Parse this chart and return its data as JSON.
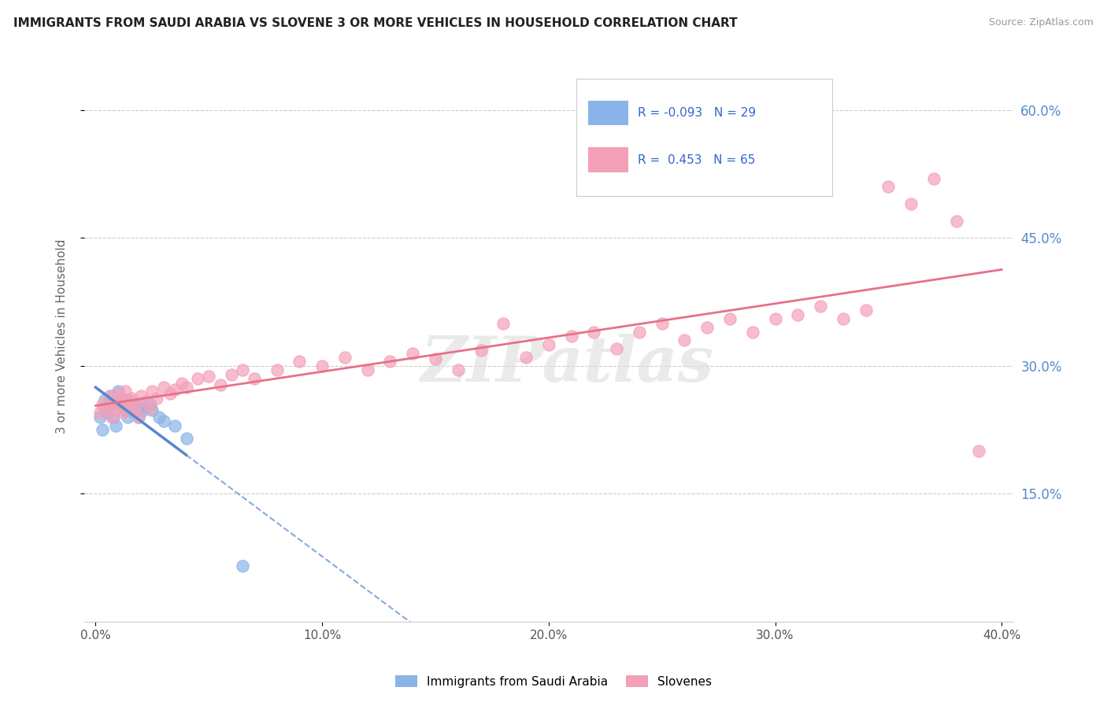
{
  "title": "IMMIGRANTS FROM SAUDI ARABIA VS SLOVENE 3 OR MORE VEHICLES IN HOUSEHOLD CORRELATION CHART",
  "source": "Source: ZipAtlas.com",
  "ylabel": "3 or more Vehicles in Household",
  "legend_labels": [
    "Immigrants from Saudi Arabia",
    "Slovenes"
  ],
  "r_blue": -0.093,
  "r_pink": 0.453,
  "n_blue": 29,
  "n_pink": 65,
  "xlim": [
    0.0,
    0.4
  ],
  "ylim": [
    0.0,
    0.65
  ],
  "xtick_vals": [
    0.0,
    0.1,
    0.2,
    0.3,
    0.4
  ],
  "xtick_labels": [
    "0.0%",
    "10.0%",
    "20.0%",
    "30.0%",
    "40.0%"
  ],
  "ytick_vals": [
    0.15,
    0.3,
    0.45,
    0.6
  ],
  "ytick_labels": [
    "15.0%",
    "30.0%",
    "45.0%",
    "60.0%"
  ],
  "color_blue": "#8AB4E8",
  "color_pink": "#F4A0B8",
  "line_blue_solid": "#5588CC",
  "line_pink_solid": "#E8708A",
  "watermark": "ZIPatlas",
  "blue_x": [
    0.002,
    0.003,
    0.004,
    0.004,
    0.005,
    0.006,
    0.007,
    0.008,
    0.009,
    0.01,
    0.011,
    0.012,
    0.013,
    0.014,
    0.015,
    0.016,
    0.017,
    0.018,
    0.019,
    0.02,
    0.021,
    0.022,
    0.024,
    0.025,
    0.028,
    0.03,
    0.035,
    0.04,
    0.065
  ],
  "blue_y": [
    0.24,
    0.225,
    0.25,
    0.26,
    0.245,
    0.255,
    0.265,
    0.24,
    0.23,
    0.27,
    0.255,
    0.26,
    0.248,
    0.24,
    0.252,
    0.258,
    0.245,
    0.25,
    0.24,
    0.255,
    0.248,
    0.252,
    0.255,
    0.248,
    0.24,
    0.235,
    0.23,
    0.215,
    0.065
  ],
  "pink_x": [
    0.002,
    0.003,
    0.005,
    0.006,
    0.007,
    0.008,
    0.009,
    0.01,
    0.011,
    0.012,
    0.013,
    0.014,
    0.015,
    0.016,
    0.017,
    0.018,
    0.019,
    0.02,
    0.022,
    0.024,
    0.025,
    0.027,
    0.03,
    0.033,
    0.035,
    0.038,
    0.04,
    0.045,
    0.05,
    0.055,
    0.06,
    0.065,
    0.07,
    0.08,
    0.09,
    0.1,
    0.11,
    0.12,
    0.13,
    0.14,
    0.15,
    0.16,
    0.17,
    0.18,
    0.19,
    0.2,
    0.21,
    0.22,
    0.23,
    0.24,
    0.25,
    0.26,
    0.27,
    0.28,
    0.29,
    0.3,
    0.31,
    0.32,
    0.33,
    0.34,
    0.35,
    0.36,
    0.37,
    0.38,
    0.39
  ],
  "pink_y": [
    0.245,
    0.255,
    0.25,
    0.265,
    0.24,
    0.255,
    0.248,
    0.268,
    0.258,
    0.245,
    0.27,
    0.26,
    0.252,
    0.262,
    0.248,
    0.255,
    0.24,
    0.265,
    0.258,
    0.25,
    0.27,
    0.262,
    0.275,
    0.268,
    0.272,
    0.28,
    0.275,
    0.285,
    0.288,
    0.278,
    0.29,
    0.295,
    0.285,
    0.295,
    0.305,
    0.3,
    0.31,
    0.295,
    0.305,
    0.315,
    0.308,
    0.295,
    0.318,
    0.35,
    0.31,
    0.325,
    0.335,
    0.34,
    0.32,
    0.34,
    0.35,
    0.33,
    0.345,
    0.355,
    0.34,
    0.355,
    0.36,
    0.37,
    0.355,
    0.365,
    0.51,
    0.49,
    0.52,
    0.47,
    0.2
  ]
}
